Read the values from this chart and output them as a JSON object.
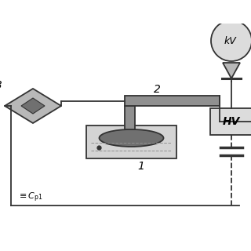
{
  "bg_color": "#ffffff",
  "gray_dark": "#707070",
  "gray_medium": "#909090",
  "gray_light": "#b8b8b8",
  "gray_lighter": "#d4d4d4",
  "gray_box": "#dcdcdc",
  "line_color": "#333333",
  "text_color": "#000000",
  "figsize": [
    3.2,
    3.2
  ],
  "dpi": 100,
  "xlim": [
    0,
    320
  ],
  "ylim": [
    0,
    260
  ]
}
